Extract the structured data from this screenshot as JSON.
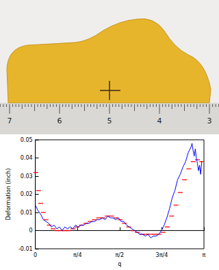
{
  "chart_data": {
    "type": "line",
    "x_label": "q",
    "y_label": "Deformation (inch)",
    "xlim": [
      0,
      3.1416
    ],
    "xticks": [
      0,
      {
        "value": 0.7854,
        "label": "π/4"
      },
      {
        "value": 1.5708,
        "label": "π/2"
      },
      {
        "value": 2.3562,
        "label": "3π/4"
      },
      {
        "value": 3.1416,
        "label": "π"
      }
    ],
    "ylim": [
      -0.01,
      0.05
    ],
    "yticks": [
      -0.01,
      0,
      0.01,
      0.02,
      0.03,
      0.04,
      0.05
    ],
    "grid": false,
    "series": [
      {
        "type": "line",
        "color": "#0000ff",
        "line_style": "solid",
        "x": [
          0,
          0.05,
          0.1,
          0.15,
          0.2,
          0.25,
          0.3,
          0.35,
          0.4,
          0.45,
          0.5,
          0.55,
          0.6,
          0.65,
          0.7,
          0.75,
          0.8,
          0.85,
          0.9,
          0.95,
          1.0,
          1.05,
          1.1,
          1.15,
          1.2,
          1.25,
          1.3,
          1.35,
          1.4,
          1.45,
          1.5,
          1.55,
          1.6,
          1.65,
          1.7,
          1.75,
          1.8,
          1.85,
          1.9,
          1.95,
          2.0,
          2.05,
          2.1,
          2.15,
          2.2,
          2.25,
          2.3,
          2.35,
          2.4,
          2.45,
          2.5,
          2.55,
          2.6,
          2.65,
          2.7,
          2.75,
          2.8,
          2.85,
          2.9,
          2.92,
          2.94,
          2.96,
          2.98,
          3.0,
          3.02,
          3.04,
          3.06,
          3.08,
          3.1
        ],
        "values": [
          0.014,
          0.011,
          0.009,
          0.006,
          0.005,
          0.004,
          0.002,
          0.003,
          0.001,
          0.002,
          0.0,
          0.002,
          0.001,
          0.002,
          0.001,
          0.003,
          0.002,
          0.003,
          0.003,
          0.004,
          0.004,
          0.005,
          0.005,
          0.006,
          0.006,
          0.007,
          0.006,
          0.008,
          0.007,
          0.007,
          0.006,
          0.007,
          0.005,
          0.005,
          0.003,
          0.002,
          0.001,
          0.0,
          -0.001,
          -0.002,
          -0.002,
          -0.003,
          -0.002,
          -0.004,
          -0.003,
          -0.003,
          -0.002,
          0.0,
          0.003,
          0.007,
          0.012,
          0.018,
          0.022,
          0.028,
          0.031,
          0.035,
          0.038,
          0.043,
          0.046,
          0.048,
          0.044,
          0.041,
          0.045,
          0.04,
          0.037,
          0.033,
          0.036,
          0.031,
          0.038
        ]
      },
      {
        "type": "scatter",
        "color": "#ff0000",
        "marker": "dash",
        "x": [
          0.01,
          0.06,
          0.1,
          0.15,
          0.2,
          0.26,
          0.33,
          0.4,
          0.47,
          0.55,
          0.62,
          0.7,
          0.78,
          0.86,
          0.94,
          1.02,
          1.1,
          1.18,
          1.26,
          1.34,
          1.42,
          1.5,
          1.58,
          1.66,
          1.74,
          1.82,
          1.9,
          1.98,
          2.06,
          2.14,
          2.22,
          2.3,
          2.38,
          2.46,
          2.54,
          2.62,
          2.7,
          2.78,
          2.86,
          2.94,
          3.02,
          3.1
        ],
        "values": [
          0.032,
          0.022,
          0.015,
          0.01,
          0.006,
          0.003,
          0.001,
          0.0,
          0.0,
          0.0,
          0.0,
          0.001,
          0.002,
          0.003,
          0.004,
          0.005,
          0.006,
          0.007,
          0.007,
          0.008,
          0.008,
          0.007,
          0.006,
          0.004,
          0.002,
          0.0,
          -0.001,
          -0.002,
          -0.002,
          -0.002,
          -0.002,
          -0.002,
          -0.001,
          0.002,
          0.008,
          0.014,
          0.021,
          0.028,
          0.034,
          0.038,
          0.039,
          0.038
        ]
      }
    ]
  },
  "photo": {
    "ruler_labels": [
      7,
      6,
      5,
      4,
      3
    ]
  }
}
